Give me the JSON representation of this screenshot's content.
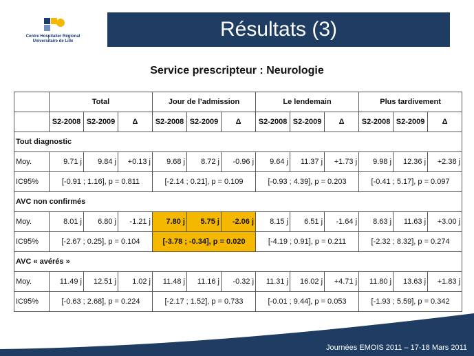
{
  "logo": {
    "line1": "Centre Hospitalier Régional",
    "line2": "Universitaire de Lille"
  },
  "title": "Résultats (3)",
  "subtitle": "Service prescripteur : Neurologie",
  "table": {
    "groups": [
      "Total",
      "Jour de l’admission",
      "Le lendemain",
      "Plus tardivement"
    ],
    "subheaders": [
      "S2-2008",
      "S2-2009",
      "Δ"
    ],
    "sections": [
      {
        "label": "Tout diagnostic",
        "moy_label": "Moy.",
        "moy": [
          "9.71 j",
          "9.84 j",
          "+0.13 j",
          "9.68 j",
          "8.72 j",
          "-0.96 j",
          "9.64 j",
          "11.37 j",
          "+1.73 j",
          "9.98 j",
          "12.36 j",
          "+2.38 j"
        ],
        "ic_label": "IC95%",
        "ic": [
          "[-0.91 ; 1.16], p = 0.811",
          "[-2.14 ; 0.21], p = 0.109",
          "[-0.93 ; 4.39], p = 0.203",
          "[-0.41 ; 5.17], p = 0.097"
        ]
      },
      {
        "label": "AVC non confirmés",
        "moy_label": "Moy.",
        "moy": [
          "8.01 j",
          "6.80 j",
          "-1.21 j",
          "7.80 j",
          "5.75 j",
          "-2.06 j",
          "8.15 j",
          "6.51 j",
          "-1.64 j",
          "8.63 j",
          "11.63 j",
          "+3.00 j"
        ],
        "ic_label": "IC95%",
        "ic": [
          "[-2.67 ; 0.25], p = 0.104",
          "[-3.78 ; -0.34], p = 0.020",
          "[-4.19 ; 0.91], p = 0.211",
          "[-2.32 ; 8.32], p = 0.274"
        ]
      },
      {
        "label": "AVC « avérés »",
        "moy_label": "Moy.",
        "moy": [
          "11.49 j",
          "12.51 j",
          "1.02 j",
          "11.48 j",
          "11.16 j",
          "-0.32 j",
          "11.31 j",
          "16.02 j",
          "+4.71 j",
          "11.80 j",
          "13.63 j",
          "+1.83 j"
        ],
        "ic_label": "IC95%",
        "ic": [
          "[-0.63 ; 2.68], p = 0.224",
          "[-2.17 ; 1.52], p = 0.733",
          "[-0.01 ; 9.44], p = 0.053",
          "[-1.93 ; 5.59], p = 0.342"
        ]
      }
    ],
    "highlight_color": "#f5b800"
  },
  "footer": "Journées EMOIS 2011 – 17-18 Mars 2011",
  "colors": {
    "title_bar": "#1f3c63",
    "footer": "#1f3c63"
  }
}
